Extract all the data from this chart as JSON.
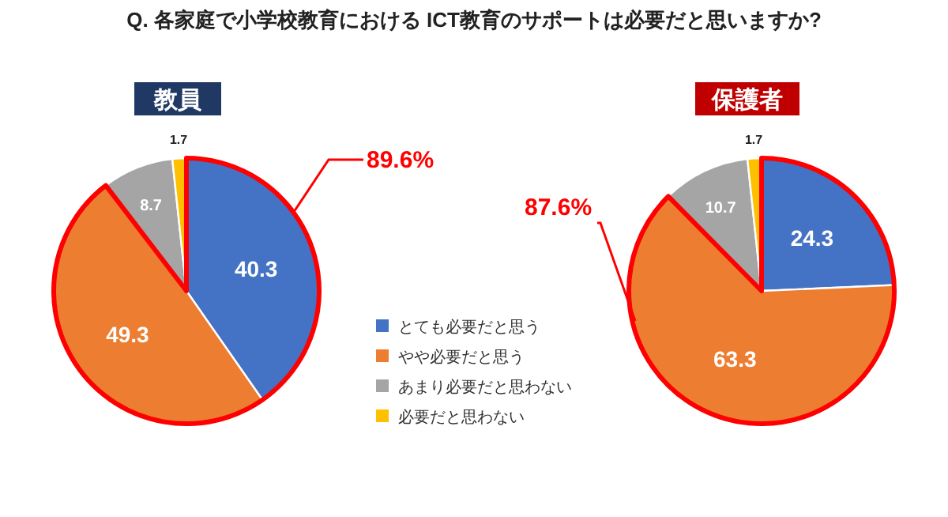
{
  "chart_data": [
    {
      "type": "pie",
      "title": "Q.  各家庭で小学校教育における ICT教育のサポートは必要だと思いますか?",
      "subtitle": "教員",
      "categories": [
        "とても必要だと思う",
        "やや必要だと思う",
        "あまり必要だと思わない",
        "必要だと思わない"
      ],
      "values": [
        40.3,
        49.3,
        8.7,
        1.7
      ],
      "colors": [
        "#4472c4",
        "#ed7d31",
        "#a5a5a5",
        "#ffc000"
      ],
      "data_labels": true,
      "legend": "right",
      "annotations": [
        "89.6%"
      ]
    },
    {
      "type": "pie",
      "subtitle": "保護者",
      "categories": [
        null,
        null,
        null,
        null
      ],
      "values": [
        24.3,
        63.3,
        10.7,
        1.7
      ],
      "colors": [
        "#4472c4",
        "#ed7d31",
        "#a5a5a5",
        "#ffc000"
      ],
      "data_labels": true,
      "annotations": [
        "87.6%"
      ]
    }
  ]
}
